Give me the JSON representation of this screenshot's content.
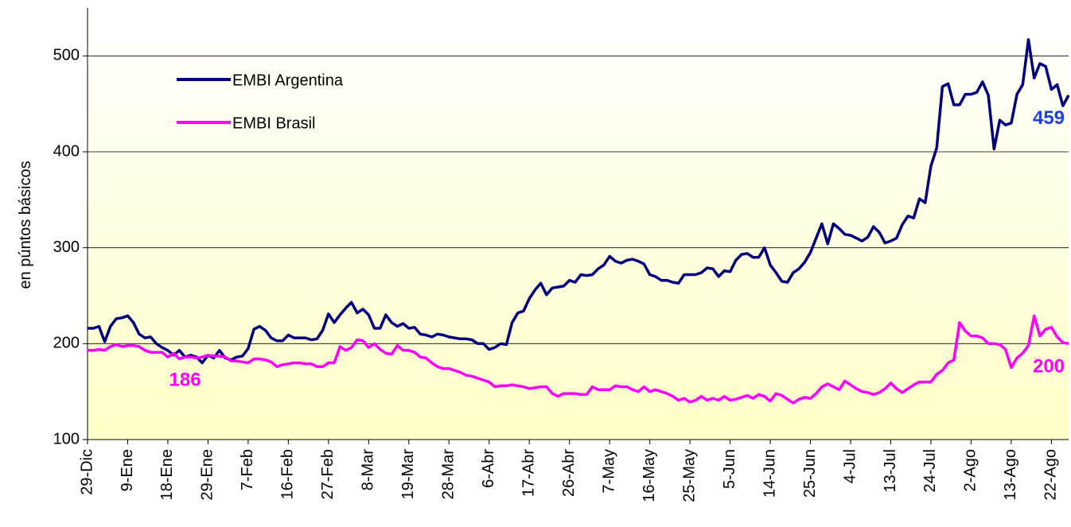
{
  "chart_data": {
    "type": "line",
    "ylabel": "en púntos básicos",
    "categories": [
      "29-Dic",
      null,
      null,
      null,
      null,
      null,
      null,
      "9-Ene",
      null,
      null,
      null,
      null,
      null,
      null,
      "18-Ene",
      null,
      null,
      null,
      null,
      null,
      null,
      "29-Ene",
      null,
      null,
      null,
      null,
      null,
      null,
      "7-Feb",
      null,
      null,
      null,
      null,
      null,
      null,
      "16-Feb",
      null,
      null,
      null,
      null,
      null,
      null,
      "27-Feb",
      null,
      null,
      null,
      null,
      null,
      null,
      "8-Mar",
      null,
      null,
      null,
      null,
      null,
      null,
      "19-Mar",
      null,
      null,
      null,
      null,
      null,
      null,
      "28-Mar",
      null,
      null,
      null,
      null,
      null,
      null,
      "6-Abr",
      null,
      null,
      null,
      null,
      null,
      null,
      "17-Abr",
      null,
      null,
      null,
      null,
      null,
      null,
      "26-Abr",
      null,
      null,
      null,
      null,
      null,
      null,
      "7-May",
      null,
      null,
      null,
      null,
      null,
      null,
      "16-May",
      null,
      null,
      null,
      null,
      null,
      null,
      "25-May",
      null,
      null,
      null,
      null,
      null,
      null,
      "5-Jun",
      null,
      null,
      null,
      null,
      null,
      null,
      "14-Jun",
      null,
      null,
      null,
      null,
      null,
      null,
      "25-Jun",
      null,
      null,
      null,
      null,
      null,
      null,
      "4-Jul",
      null,
      null,
      null,
      null,
      null,
      null,
      "13-Jul",
      null,
      null,
      null,
      null,
      null,
      null,
      "24-Jul",
      null,
      null,
      null,
      null,
      null,
      null,
      "2-Ago",
      null,
      null,
      null,
      null,
      null,
      null,
      "13-Ago",
      null,
      null,
      null,
      null,
      null,
      null,
      "22-Ago",
      null,
      null,
      null
    ],
    "series": [
      {
        "name": "EMBI Argentina",
        "color": "#000080",
        "values": [
          216,
          216,
          218,
          202,
          218,
          226,
          227,
          229,
          222,
          210,
          206,
          207,
          200,
          196,
          193,
          188,
          193,
          186,
          188,
          186,
          180,
          188,
          185,
          193,
          185,
          183,
          186,
          187,
          195,
          215,
          218,
          214,
          206,
          203,
          203,
          209,
          206,
          206,
          206,
          204,
          205,
          214,
          231,
          222,
          230,
          237,
          243,
          232,
          236,
          230,
          216,
          216,
          230,
          222,
          218,
          221,
          216,
          217,
          210,
          209,
          207,
          210,
          209,
          207,
          206,
          205,
          205,
          204,
          200,
          200,
          194,
          196,
          200,
          199,
          222,
          232,
          234,
          247,
          256,
          263,
          251,
          258,
          259,
          260,
          266,
          264,
          272,
          271,
          272,
          278,
          282,
          291,
          286,
          284,
          287,
          288,
          286,
          283,
          272,
          270,
          266,
          266,
          264,
          263,
          272,
          272,
          272,
          274,
          279,
          278,
          270,
          276,
          275,
          287,
          293,
          294,
          290,
          290,
          300,
          282,
          274,
          265,
          264,
          274,
          278,
          285,
          295,
          310,
          325,
          304,
          325,
          320,
          314,
          313,
          310,
          307,
          311,
          322,
          316,
          305,
          307,
          310,
          324,
          333,
          331,
          351,
          347,
          385,
          404,
          468,
          471,
          449,
          449,
          460,
          460,
          462,
          473,
          459,
          403,
          433,
          428,
          430,
          460,
          470,
          517,
          477,
          492,
          489,
          465,
          470,
          448,
          459
        ]
      },
      {
        "name": "EMBI Brasil",
        "color": "#ff00ff",
        "values": [
          193,
          193,
          194,
          193,
          197,
          199,
          197,
          198,
          198,
          197,
          193,
          191,
          191,
          191,
          186,
          190,
          184,
          186,
          186,
          185,
          186,
          188,
          187,
          187,
          186,
          182,
          182,
          181,
          180,
          184,
          184,
          183,
          181,
          176,
          178,
          179,
          180,
          180,
          179,
          179,
          176,
          176,
          180,
          180,
          197,
          193,
          196,
          204,
          203,
          196,
          200,
          194,
          190,
          189,
          198,
          193,
          193,
          191,
          186,
          185,
          180,
          176,
          174,
          174,
          172,
          170,
          167,
          166,
          164,
          162,
          160,
          155,
          156,
          156,
          157,
          156,
          155,
          153,
          154,
          155,
          155,
          148,
          145,
          148,
          148,
          148,
          147,
          147,
          155,
          152,
          152,
          152,
          156,
          155,
          155,
          152,
          150,
          155,
          150,
          152,
          150,
          148,
          145,
          141,
          143,
          139,
          141,
          145,
          141,
          143,
          141,
          145,
          141,
          142,
          144,
          146,
          143,
          147,
          145,
          140,
          148,
          146,
          142,
          138,
          142,
          144,
          143,
          148,
          155,
          158,
          155,
          152,
          161,
          157,
          153,
          150,
          149,
          147,
          149,
          153,
          159,
          153,
          149,
          153,
          157,
          160,
          160,
          160,
          168,
          172,
          180,
          183,
          222,
          213,
          208,
          208,
          206,
          200,
          200,
          199,
          194,
          175,
          185,
          190,
          198,
          229,
          208,
          215,
          217,
          207,
          201,
          200
        ]
      }
    ],
    "annotations": [
      {
        "text": "186",
        "series": 1,
        "index": 17,
        "color": "#ff00ff"
      },
      {
        "text": "459",
        "series": 0,
        "index": 171,
        "color": "#1f3fe0"
      },
      {
        "text": "200",
        "series": 1,
        "index": 171,
        "color": "#ff00ff"
      }
    ],
    "ylim": [
      100,
      550
    ],
    "yticks": [
      100,
      200,
      300,
      400,
      500
    ],
    "grid": true,
    "legend": "upper left"
  }
}
